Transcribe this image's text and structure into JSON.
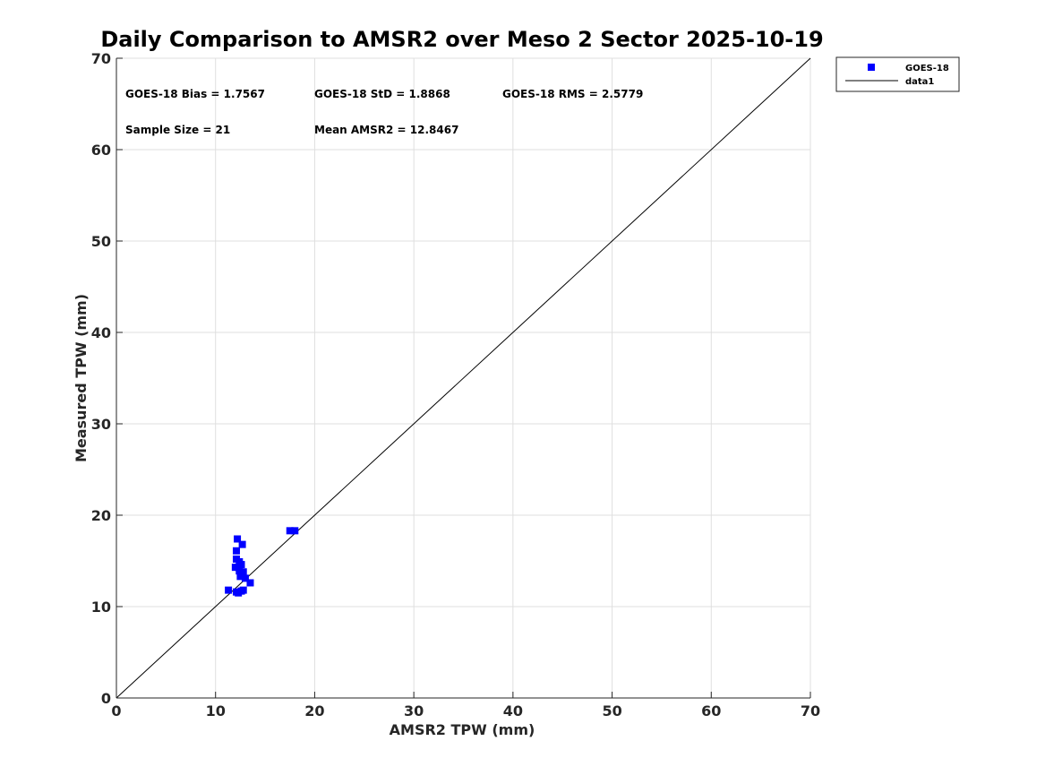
{
  "chart_data": {
    "type": "scatter",
    "title": "Daily Comparison to AMSR2 over Meso 2 Sector 2025-10-19",
    "xlabel": "AMSR2 TPW (mm)",
    "ylabel": "Measured TPW (mm)",
    "xlim": [
      0,
      70
    ],
    "ylim": [
      0,
      70
    ],
    "xticks": [
      "0",
      "10",
      "20",
      "30",
      "40",
      "50",
      "60",
      "70"
    ],
    "yticks": [
      "0",
      "10",
      "20",
      "30",
      "40",
      "50",
      "60",
      "70"
    ],
    "grid": true,
    "legend_position": "outside-top-right",
    "series": [
      {
        "name": "GOES-18",
        "kind": "scatter",
        "marker": "square",
        "color": "#0000ff",
        "points": [
          [
            11.3,
            11.8
          ],
          [
            12.1,
            11.6
          ],
          [
            12.3,
            11.5
          ],
          [
            12.6,
            11.7
          ],
          [
            12.8,
            11.8
          ],
          [
            13.5,
            12.6
          ],
          [
            13.0,
            13.1
          ],
          [
            12.7,
            13.5
          ],
          [
            12.5,
            13.3
          ],
          [
            12.4,
            13.9
          ],
          [
            12.8,
            13.8
          ],
          [
            12.3,
            14.3
          ],
          [
            12.0,
            14.3
          ],
          [
            12.6,
            14.6
          ],
          [
            12.4,
            14.9
          ],
          [
            12.1,
            15.2
          ],
          [
            12.1,
            16.1
          ],
          [
            12.7,
            16.8
          ],
          [
            12.2,
            17.4
          ],
          [
            17.5,
            18.3
          ],
          [
            18.0,
            18.3
          ]
        ]
      },
      {
        "name": "data1",
        "kind": "line",
        "color": "#000000",
        "points": [
          [
            0,
            0
          ],
          [
            70,
            70
          ]
        ]
      }
    ],
    "annotations": {
      "bias": "GOES-18 Bias = 1.7567",
      "std": "GOES-18 StD = 1.8868",
      "rms": "GOES-18 RMS = 2.5779",
      "sample": "Sample Size = 21",
      "mean": "Mean AMSR2 = 12.8467"
    }
  }
}
